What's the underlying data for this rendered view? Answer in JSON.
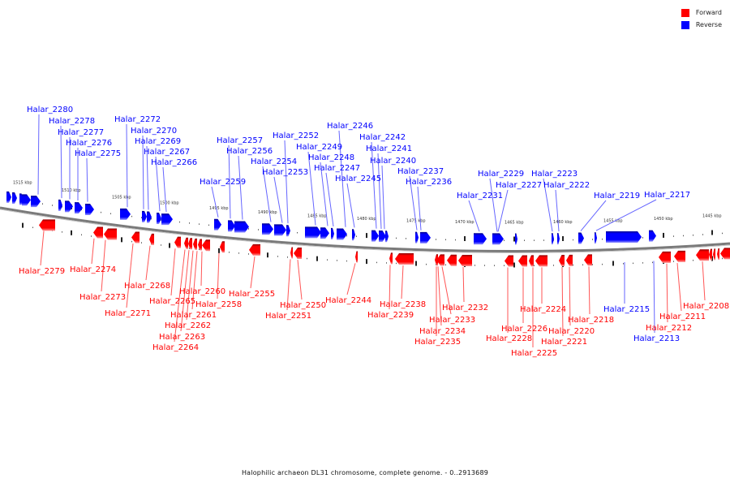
{
  "legend": {
    "items": [
      {
        "label": "Forward",
        "color": "#ff0000"
      },
      {
        "label": "Reverse",
        "color": "#0000ff"
      }
    ]
  },
  "caption": "Halophilic archaeon DL31 chromosome, complete genome. - 0..2913689",
  "colors": {
    "forward": "#ff0000",
    "reverse": "#0000ff",
    "backbone": "#808080"
  },
  "scale_ticks": [
    "1515 kbp",
    "1510 kbp",
    "1505 kbp",
    "1500 kbp",
    "1495 kbp",
    "1490 kbp",
    "1485 kbp",
    "1480 kbp",
    "1475 kbp",
    "1470 kbp",
    "1465 kbp",
    "1460 kbp",
    "1455 kbp",
    "1450 kbp",
    "1445 kbp"
  ],
  "reverse_genes": [
    "Halar_2280",
    "Halar_2278",
    "Halar_2277",
    "Halar_2276",
    "Halar_2275",
    "Halar_2272",
    "Halar_2270",
    "Halar_2269",
    "Halar_2267",
    "Halar_2266",
    "Halar_2259",
    "Halar_2257",
    "Halar_2256",
    "Halar_2254",
    "Halar_2253",
    "Halar_2252",
    "Halar_2249",
    "Halar_2248",
    "Halar_2247",
    "Halar_2246",
    "Halar_2245",
    "Halar_2242",
    "Halar_2241",
    "Halar_2240",
    "Halar_2237",
    "Halar_2236",
    "Halar_2231",
    "Halar_2229",
    "Halar_2227",
    "Halar_2223",
    "Halar_2222",
    "Halar_2219",
    "Halar_2217",
    "Halar_2215",
    "Halar_2213"
  ],
  "forward_genes": [
    "Halar_2279",
    "Halar_2274",
    "Halar_2273",
    "Halar_2271",
    "Halar_2268",
    "Halar_2265",
    "Halar_2264",
    "Halar_2263",
    "Halar_2262",
    "Halar_2261",
    "Halar_2260",
    "Halar_2258",
    "Halar_2255",
    "Halar_2251",
    "Halar_2250",
    "Halar_2244",
    "Halar_2239",
    "Halar_2238",
    "Halar_2235",
    "Halar_2234",
    "Halar_2233",
    "Halar_2232",
    "Halar_2228",
    "Halar_2226",
    "Halar_2225",
    "Halar_2224",
    "Halar_2221",
    "Halar_2220",
    "Halar_2218",
    "Halar_2212",
    "Halar_2211",
    "Halar_2208"
  ]
}
